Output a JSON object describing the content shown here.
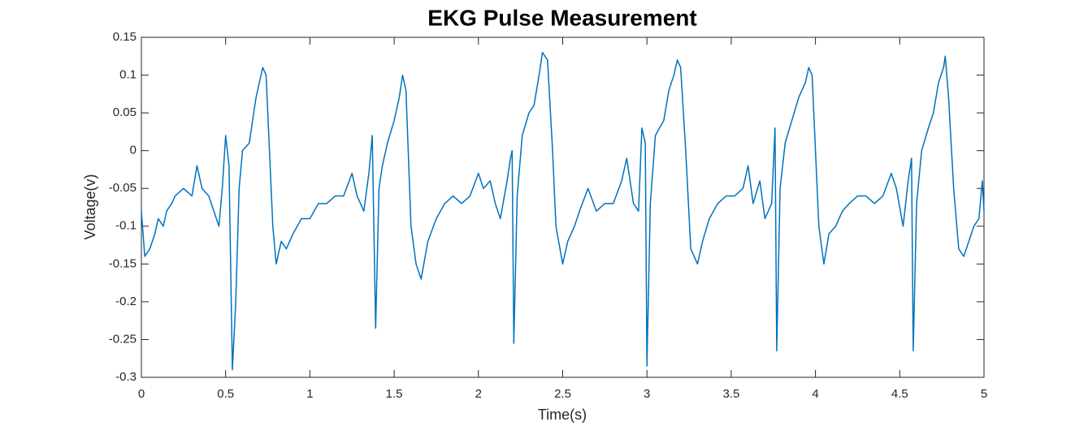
{
  "chart_data": {
    "type": "line",
    "title": "EKG Pulse Measurement",
    "x_label": "Time(s)",
    "y_label": "Voltage(v)",
    "xlim": [
      0,
      5
    ],
    "ylim": [
      -0.3,
      0.15
    ],
    "xticks": [
      0,
      0.5,
      1,
      1.5,
      2,
      2.5,
      3,
      3.5,
      4,
      4.5,
      5
    ],
    "yticks": [
      -0.3,
      -0.25,
      -0.2,
      -0.15,
      -0.1,
      -0.05,
      0,
      0.05,
      0.1,
      0.15
    ],
    "grid": false,
    "x": [
      0,
      0.02,
      0.05,
      0.08,
      0.1,
      0.13,
      0.15,
      0.18,
      0.2,
      0.25,
      0.3,
      0.33,
      0.36,
      0.4,
      0.43,
      0.46,
      0.48,
      0.5,
      0.52,
      0.54,
      0.56,
      0.58,
      0.6,
      0.62,
      0.64,
      0.66,
      0.68,
      0.7,
      0.72,
      0.74,
      0.76,
      0.78,
      0.8,
      0.83,
      0.86,
      0.9,
      0.95,
      1.0,
      1.05,
      1.1,
      1.15,
      1.2,
      1.25,
      1.28,
      1.3,
      1.32,
      1.35,
      1.37,
      1.39,
      1.41,
      1.43,
      1.46,
      1.5,
      1.53,
      1.55,
      1.57,
      1.6,
      1.63,
      1.66,
      1.7,
      1.75,
      1.8,
      1.85,
      1.9,
      1.95,
      2.0,
      2.03,
      2.07,
      2.1,
      2.13,
      2.17,
      2.19,
      2.2,
      2.21,
      2.23,
      2.26,
      2.3,
      2.33,
      2.36,
      2.38,
      2.41,
      2.44,
      2.46,
      2.5,
      2.53,
      2.57,
      2.6,
      2.65,
      2.7,
      2.75,
      2.8,
      2.85,
      2.88,
      2.92,
      2.95,
      2.97,
      2.99,
      3.0,
      3.02,
      3.05,
      3.1,
      3.13,
      3.16,
      3.18,
      3.2,
      3.23,
      3.26,
      3.3,
      3.33,
      3.37,
      3.42,
      3.47,
      3.52,
      3.57,
      3.6,
      3.63,
      3.67,
      3.7,
      3.74,
      3.76,
      3.77,
      3.79,
      3.82,
      3.86,
      3.9,
      3.94,
      3.96,
      3.98,
      4.0,
      4.02,
      4.05,
      4.08,
      4.12,
      4.16,
      4.2,
      4.25,
      4.3,
      4.35,
      4.4,
      4.45,
      4.48,
      4.52,
      4.55,
      4.57,
      4.58,
      4.6,
      4.63,
      4.67,
      4.7,
      4.73,
      4.76,
      4.77,
      4.79,
      4.82,
      4.85,
      4.88,
      4.91,
      4.94,
      4.97,
      4.99,
      5.0
    ],
    "series": [
      {
        "color": "#0072bd",
        "values": [
          -0.08,
          -0.14,
          -0.13,
          -0.11,
          -0.09,
          -0.1,
          -0.08,
          -0.07,
          -0.06,
          -0.05,
          -0.06,
          -0.02,
          -0.05,
          -0.06,
          -0.08,
          -0.1,
          -0.05,
          0.02,
          -0.02,
          -0.29,
          -0.2,
          -0.05,
          0.0,
          0.005,
          0.01,
          0.04,
          0.07,
          0.09,
          0.11,
          0.1,
          0.0,
          -0.1,
          -0.15,
          -0.12,
          -0.13,
          -0.11,
          -0.09,
          -0.09,
          -0.07,
          -0.07,
          -0.06,
          -0.06,
          -0.03,
          -0.06,
          -0.07,
          -0.08,
          -0.03,
          0.02,
          -0.235,
          -0.05,
          -0.02,
          0.01,
          0.04,
          0.07,
          0.1,
          0.08,
          -0.1,
          -0.15,
          -0.17,
          -0.12,
          -0.09,
          -0.07,
          -0.06,
          -0.07,
          -0.06,
          -0.03,
          -0.05,
          -0.04,
          -0.07,
          -0.09,
          -0.04,
          -0.01,
          0.0,
          -0.255,
          -0.06,
          0.02,
          0.05,
          0.06,
          0.1,
          0.13,
          0.12,
          0.0,
          -0.1,
          -0.15,
          -0.12,
          -0.1,
          -0.08,
          -0.05,
          -0.08,
          -0.07,
          -0.07,
          -0.04,
          -0.01,
          -0.07,
          -0.08,
          0.03,
          0.01,
          -0.285,
          -0.07,
          0.02,
          0.04,
          0.08,
          0.1,
          0.12,
          0.11,
          0.0,
          -0.13,
          -0.15,
          -0.12,
          -0.09,
          -0.07,
          -0.06,
          -0.06,
          -0.05,
          -0.02,
          -0.07,
          -0.04,
          -0.09,
          -0.07,
          0.03,
          -0.265,
          -0.05,
          0.01,
          0.04,
          0.07,
          0.09,
          0.11,
          0.1,
          0.0,
          -0.1,
          -0.15,
          -0.11,
          -0.1,
          -0.08,
          -0.07,
          -0.06,
          -0.06,
          -0.07,
          -0.06,
          -0.03,
          -0.05,
          -0.1,
          -0.04,
          -0.01,
          -0.265,
          -0.07,
          0.0,
          0.03,
          0.05,
          0.09,
          0.11,
          0.125,
          0.07,
          -0.05,
          -0.13,
          -0.14,
          -0.12,
          -0.1,
          -0.09,
          -0.04,
          -0.08
        ]
      }
    ]
  }
}
